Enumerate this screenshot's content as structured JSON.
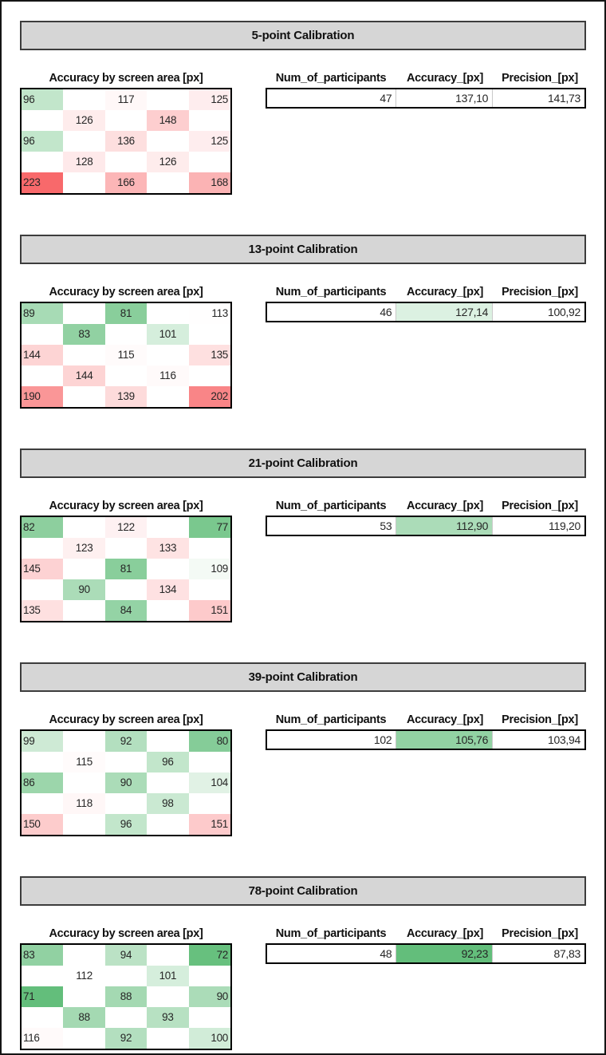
{
  "page": {
    "background": "#ffffff",
    "border_color": "#141414",
    "header_bar_fill": "#d6d6d6",
    "header_bar_border": "#3d3d3d"
  },
  "heatmap_title": "Accuracy by screen area [px]",
  "stats_columns": {
    "participants": "Num_of_participants",
    "accuracy": "Accuracy_[px]",
    "precision": "Precision_[px]"
  },
  "color_scale": {
    "cells": {
      "min_value": 71,
      "mid_value": 112,
      "max_value": 223,
      "green": "#63BE7B",
      "white": "#FFFFFF",
      "red": "#F8696B"
    },
    "accuracy_column": {
      "min_value": 92.23,
      "max_value": 137.1,
      "green": "#63BE7B",
      "white": "#FFFFFF"
    }
  },
  "chart_data": [
    {
      "type": "heatmap",
      "title": "5-point Calibration",
      "grid_title": "Accuracy by screen area [px]",
      "grid": [
        [
          96,
          null,
          117,
          null,
          125
        ],
        [
          null,
          126,
          null,
          148,
          null
        ],
        [
          96,
          null,
          136,
          null,
          125
        ],
        [
          null,
          128,
          null,
          126,
          null
        ],
        [
          223,
          null,
          166,
          null,
          168
        ]
      ],
      "participants": "47",
      "accuracy_display": "137,10",
      "accuracy_value": 137.1,
      "precision_display": "141,73"
    },
    {
      "type": "heatmap",
      "title": "13-point Calibration",
      "grid_title": "Accuracy by screen area [px]",
      "grid": [
        [
          89,
          null,
          81,
          null,
          113
        ],
        [
          null,
          83,
          null,
          101,
          null
        ],
        [
          144,
          null,
          115,
          null,
          135
        ],
        [
          null,
          144,
          null,
          116,
          null
        ],
        [
          190,
          null,
          139,
          null,
          202
        ]
      ],
      "participants": "46",
      "accuracy_display": "127,14",
      "accuracy_value": 127.14,
      "precision_display": "100,92"
    },
    {
      "type": "heatmap",
      "title": "21-point Calibration",
      "grid_title": "Accuracy by screen area [px]",
      "grid": [
        [
          82,
          null,
          122,
          null,
          77
        ],
        [
          null,
          123,
          null,
          133,
          null
        ],
        [
          145,
          null,
          81,
          null,
          109
        ],
        [
          null,
          90,
          null,
          134,
          null
        ],
        [
          135,
          null,
          84,
          null,
          151
        ]
      ],
      "participants": "53",
      "accuracy_display": "112,90",
      "accuracy_value": 112.9,
      "precision_display": "119,20"
    },
    {
      "type": "heatmap",
      "title": "39-point Calibration",
      "grid_title": "Accuracy by screen area [px]",
      "grid": [
        [
          99,
          null,
          92,
          null,
          80
        ],
        [
          null,
          115,
          null,
          96,
          null
        ],
        [
          86,
          null,
          90,
          null,
          104
        ],
        [
          null,
          118,
          null,
          98,
          null
        ],
        [
          150,
          null,
          96,
          null,
          151
        ]
      ],
      "participants": "102",
      "accuracy_display": "105,76",
      "accuracy_value": 105.76,
      "precision_display": "103,94"
    },
    {
      "type": "heatmap",
      "title": "78-point Calibration",
      "grid_title": "Accuracy by screen area [px]",
      "grid": [
        [
          83,
          null,
          94,
          null,
          72
        ],
        [
          null,
          112,
          null,
          101,
          null
        ],
        [
          71,
          null,
          88,
          null,
          90
        ],
        [
          null,
          88,
          null,
          93,
          null
        ],
        [
          116,
          null,
          92,
          null,
          100
        ]
      ],
      "participants": "48",
      "accuracy_display": "92,23",
      "accuracy_value": 92.23,
      "precision_display": "87,83"
    }
  ]
}
